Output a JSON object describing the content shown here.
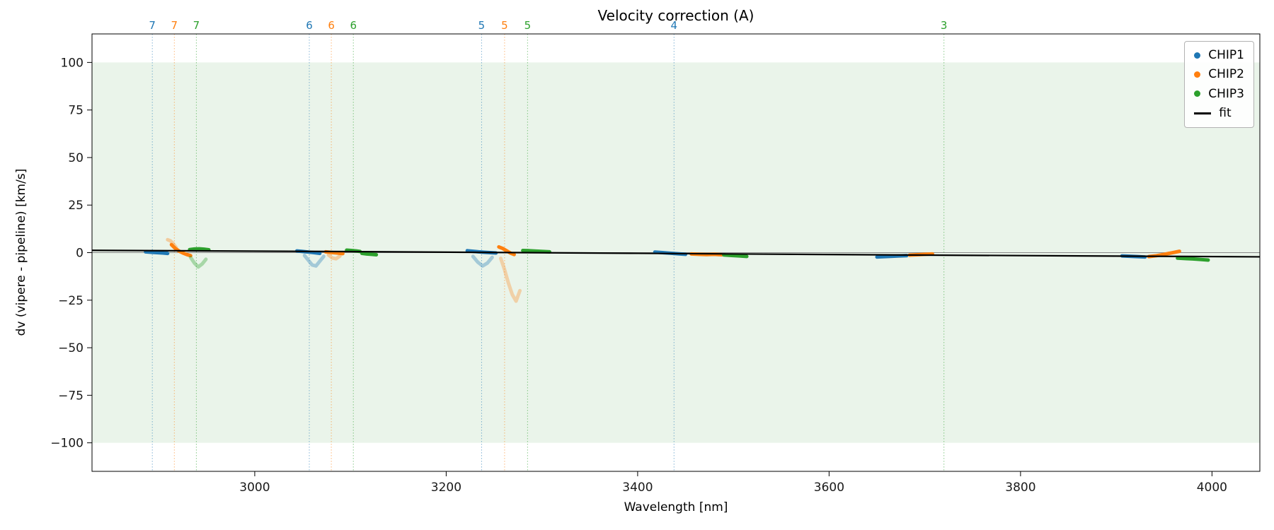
{
  "chart_data": {
    "type": "scatter",
    "title": "Velocity correction (A)",
    "xlabel": "Wavelength [nm]",
    "ylabel": "dv (vipere - pipeline) [km/s]",
    "xlim": [
      2830,
      4050
    ],
    "ylim": [
      -115,
      115
    ],
    "xticks": [
      3000,
      3200,
      3400,
      3600,
      3800,
      4000
    ],
    "yticks": [
      -100,
      -75,
      -50,
      -25,
      0,
      25,
      50,
      75,
      100
    ],
    "grid": false,
    "band": {
      "ymin": -100,
      "ymax": 100,
      "color": "#eaf4ea"
    },
    "zero_line": {
      "y": 0,
      "color": "#8a8a8a"
    },
    "colors": {
      "CHIP1": "#1f77b4",
      "CHIP2": "#ff7f0e",
      "CHIP3": "#2ca02c",
      "fit": "#000000"
    },
    "legend": [
      {
        "label": "CHIP1",
        "marker": "dot",
        "color": "#1f77b4"
      },
      {
        "label": "CHIP2",
        "marker": "dot",
        "color": "#ff7f0e"
      },
      {
        "label": "CHIP3",
        "marker": "dot",
        "color": "#2ca02c"
      },
      {
        "label": "fit",
        "marker": "line",
        "color": "#000000"
      }
    ],
    "legend_position": "upper right",
    "order_markers": [
      {
        "label": "7",
        "x": 2893,
        "chip": "CHIP1"
      },
      {
        "label": "7",
        "x": 2916,
        "chip": "CHIP2"
      },
      {
        "label": "7",
        "x": 2939,
        "chip": "CHIP3"
      },
      {
        "label": "6",
        "x": 3057,
        "chip": "CHIP1"
      },
      {
        "label": "6",
        "x": 3080,
        "chip": "CHIP2"
      },
      {
        "label": "6",
        "x": 3103,
        "chip": "CHIP3"
      },
      {
        "label": "5",
        "x": 3237,
        "chip": "CHIP1"
      },
      {
        "label": "5",
        "x": 3261,
        "chip": "CHIP2"
      },
      {
        "label": "5",
        "x": 3285,
        "chip": "CHIP3"
      },
      {
        "label": "4",
        "x": 3438,
        "chip": "CHIP1"
      },
      {
        "label": "3",
        "x": 3720,
        "chip": "CHIP3"
      }
    ],
    "fit_line": {
      "x": [
        2830,
        3100,
        3400,
        3700,
        4050
      ],
      "y": [
        1.2,
        0.55,
        -0.35,
        -1.3,
        -2.2
      ]
    },
    "series": [
      {
        "chip": "CHIP1",
        "alpha": 1.0,
        "x": [
          2886,
          2892,
          2898,
          2904,
          2909
        ],
        "y": [
          0.4,
          0.2,
          0.0,
          -0.2,
          -0.4
        ]
      },
      {
        "chip": "CHIP2",
        "alpha": 0.35,
        "x": [
          2909,
          2912,
          2915,
          2918
        ],
        "y": [
          6.8,
          6.2,
          4.6,
          2.6
        ]
      },
      {
        "chip": "CHIP2",
        "alpha": 1.0,
        "x": [
          2913,
          2917,
          2921,
          2925,
          2929,
          2933
        ],
        "y": [
          4.2,
          2.2,
          0.8,
          -0.2,
          -1.0,
          -1.6
        ]
      },
      {
        "chip": "CHIP3",
        "alpha": 1.0,
        "x": [
          2932,
          2937,
          2942,
          2947,
          2952
        ],
        "y": [
          1.6,
          1.9,
          2.0,
          1.8,
          1.5
        ]
      },
      {
        "chip": "CHIP3",
        "alpha": 0.35,
        "x": [
          2933,
          2937,
          2941,
          2945,
          2949
        ],
        "y": [
          -2.5,
          -5.5,
          -7.5,
          -6.0,
          -3.5
        ]
      },
      {
        "chip": "CHIP1",
        "alpha": 1.0,
        "x": [
          3044,
          3050,
          3056,
          3062,
          3068
        ],
        "y": [
          0.9,
          0.6,
          0.3,
          0.0,
          -0.4
        ]
      },
      {
        "chip": "CHIP1",
        "alpha": 0.35,
        "x": [
          3052,
          3056,
          3060,
          3064,
          3068,
          3072
        ],
        "y": [
          -1.5,
          -4.0,
          -6.5,
          -7.0,
          -4.5,
          -2.0
        ]
      },
      {
        "chip": "CHIP2",
        "alpha": 1.0,
        "x": [
          3074,
          3080,
          3086,
          3092
        ],
        "y": [
          0.4,
          0.1,
          -0.2,
          -0.5
        ]
      },
      {
        "chip": "CHIP2",
        "alpha": 0.35,
        "x": [
          3077,
          3081,
          3085,
          3089
        ],
        "y": [
          -1.2,
          -2.8,
          -3.2,
          -1.8
        ]
      },
      {
        "chip": "CHIP3",
        "alpha": 1.0,
        "x": [
          3096,
          3101,
          3106,
          3110
        ],
        "y": [
          1.3,
          1.1,
          0.9,
          0.6
        ]
      },
      {
        "chip": "CHIP3",
        "alpha": 1.0,
        "x": [
          3112,
          3117,
          3122,
          3127
        ],
        "y": [
          -0.4,
          -0.7,
          -0.9,
          -1.1
        ]
      },
      {
        "chip": "CHIP1",
        "alpha": 1.0,
        "x": [
          3222,
          3228,
          3234,
          3240,
          3246,
          3252
        ],
        "y": [
          1.0,
          0.7,
          0.4,
          0.2,
          0.0,
          -0.2
        ]
      },
      {
        "chip": "CHIP1",
        "alpha": 0.35,
        "x": [
          3228,
          3233,
          3238,
          3243,
          3248
        ],
        "y": [
          -2.0,
          -5.0,
          -7.0,
          -5.5,
          -2.5
        ]
      },
      {
        "chip": "CHIP2",
        "alpha": 1.0,
        "x": [
          3255,
          3259,
          3263,
          3267,
          3271
        ],
        "y": [
          3.0,
          2.2,
          1.0,
          -0.2,
          -1.0
        ]
      },
      {
        "chip": "CHIP2",
        "alpha": 0.3,
        "x": [
          3257,
          3261,
          3265,
          3269,
          3273,
          3277
        ],
        "y": [
          -3.0,
          -9.0,
          -16.0,
          -22.0,
          -25.5,
          -20.0
        ]
      },
      {
        "chip": "CHIP3",
        "alpha": 1.0,
        "x": [
          3280,
          3287,
          3294,
          3301,
          3308
        ],
        "y": [
          1.1,
          1.0,
          0.8,
          0.6,
          0.4
        ]
      },
      {
        "chip": "CHIP1",
        "alpha": 1.0,
        "x": [
          3418,
          3426,
          3434,
          3442,
          3450
        ],
        "y": [
          0.3,
          0.0,
          -0.3,
          -0.6,
          -0.9
        ]
      },
      {
        "chip": "CHIP2",
        "alpha": 1.0,
        "x": [
          3456,
          3464,
          3472,
          3480,
          3488
        ],
        "y": [
          -0.7,
          -0.9,
          -1.0,
          -0.9,
          -1.1
        ]
      },
      {
        "chip": "CHIP3",
        "alpha": 1.0,
        "x": [
          3490,
          3498,
          3506,
          3514
        ],
        "y": [
          -1.2,
          -1.5,
          -1.7,
          -2.0
        ]
      },
      {
        "chip": "CHIP1",
        "alpha": 1.0,
        "x": [
          3650,
          3658,
          3666,
          3674,
          3681
        ],
        "y": [
          -2.3,
          -2.1,
          -1.9,
          -1.7,
          -1.6
        ]
      },
      {
        "chip": "CHIP2",
        "alpha": 1.0,
        "x": [
          3684,
          3692,
          3700,
          3708
        ],
        "y": [
          -1.3,
          -1.1,
          -0.9,
          -0.7
        ]
      },
      {
        "chip": "CHIP1",
        "alpha": 1.0,
        "x": [
          3906,
          3914,
          3922,
          3930
        ],
        "y": [
          -1.7,
          -1.9,
          -2.1,
          -2.3
        ]
      },
      {
        "chip": "CHIP2",
        "alpha": 1.0,
        "x": [
          3934,
          3942,
          3950,
          3958,
          3966
        ],
        "y": [
          -2.1,
          -1.6,
          -0.9,
          -0.1,
          0.7
        ]
      },
      {
        "chip": "CHIP3",
        "alpha": 1.0,
        "x": [
          3964,
          3972,
          3980,
          3988,
          3996
        ],
        "y": [
          -2.9,
          -3.1,
          -3.3,
          -3.6,
          -3.9
        ]
      }
    ]
  }
}
